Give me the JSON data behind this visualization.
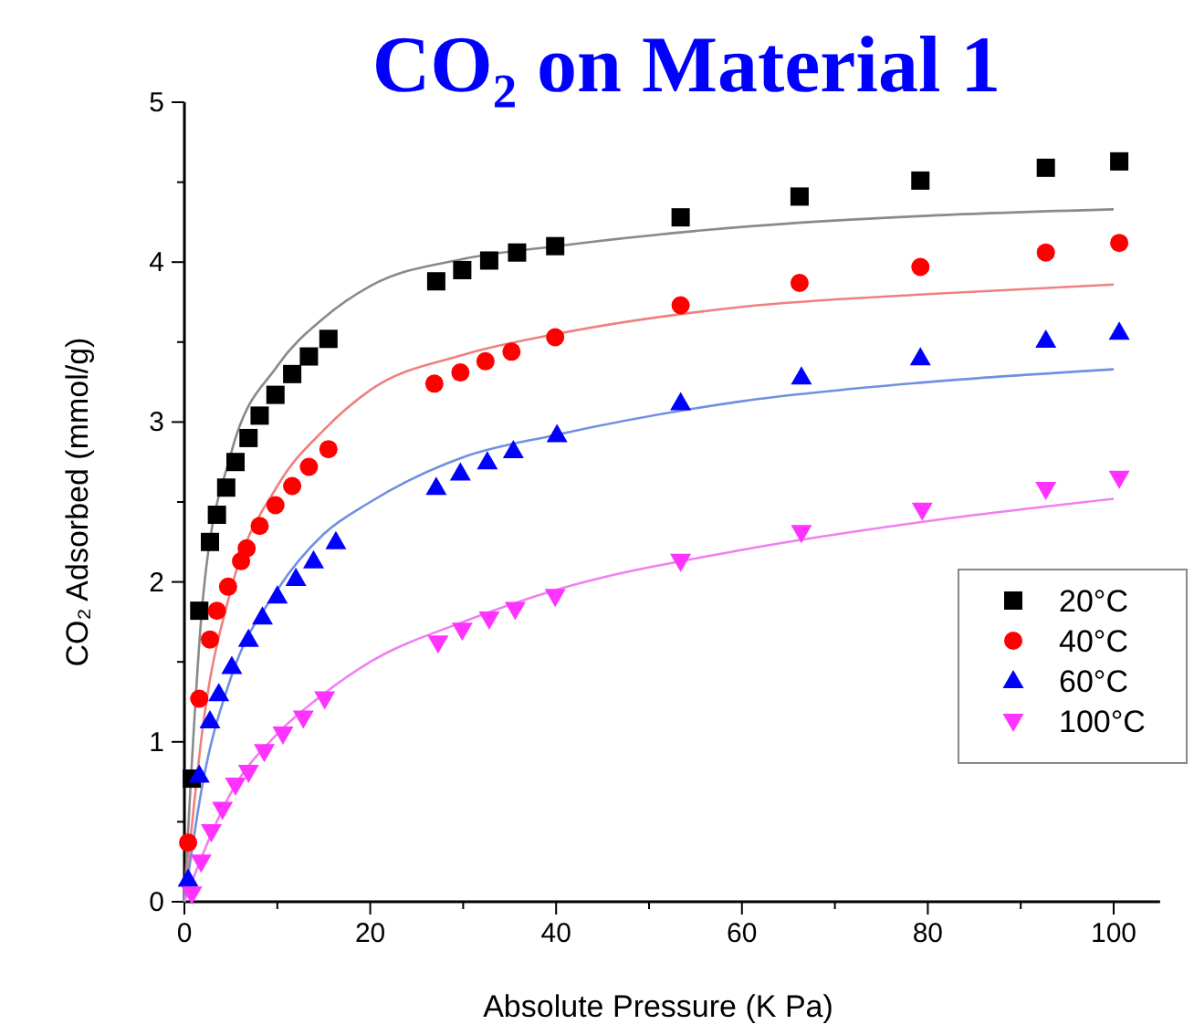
{
  "chart_data": {
    "type": "scatter",
    "title": "CO₂ on Material 1",
    "xlabel": "Absolute Pressure (K Pa)",
    "ylabel": "CO₂ Adsorbed (mmol/g)",
    "xlim": [
      0,
      105
    ],
    "ylim": [
      0,
      5
    ],
    "xticks": [
      0,
      {
        "value": 10,
        "label": null
      },
      20,
      {
        "value": 30,
        "label": null
      },
      40,
      {
        "value": 50,
        "label": null
      },
      60,
      {
        "value": 70,
        "label": null
      },
      80,
      {
        "value": 90,
        "label": null
      },
      100
    ],
    "yticks": [
      0,
      {
        "value": 0.5,
        "label": null
      },
      1,
      {
        "value": 1.5,
        "label": null
      },
      2,
      {
        "value": 2.5,
        "label": null
      },
      3,
      {
        "value": 3.5,
        "label": null
      },
      4,
      {
        "value": 4.5,
        "label": null
      },
      5
    ],
    "grid": false,
    "legend": "bottom right",
    "series": [
      {
        "type": "line",
        "color": "#8a8a8a",
        "x": [
          0,
          2,
          5,
          10,
          15,
          20,
          30,
          40,
          60,
          80,
          100
        ],
        "values": [
          0,
          1.9,
          2.8,
          3.35,
          3.65,
          3.85,
          4.02,
          4.1,
          4.22,
          4.29,
          4.33
        ]
      },
      {
        "type": "line",
        "color": "#f08080",
        "x": [
          0,
          2,
          5,
          10,
          15,
          20,
          30,
          40,
          60,
          80,
          100
        ],
        "values": [
          0,
          1.1,
          1.95,
          2.6,
          2.95,
          3.2,
          3.42,
          3.55,
          3.72,
          3.8,
          3.86
        ]
      },
      {
        "type": "line",
        "color": "#7090e0",
        "x": [
          0,
          2,
          5,
          10,
          15,
          20,
          30,
          40,
          60,
          80,
          100
        ],
        "values": [
          0,
          0.75,
          1.4,
          1.95,
          2.3,
          2.5,
          2.78,
          2.92,
          3.13,
          3.25,
          3.33
        ]
      },
      {
        "type": "line",
        "color": "#f080f0",
        "x": [
          0,
          2,
          5,
          10,
          15,
          20,
          30,
          40,
          60,
          80,
          100
        ],
        "values": [
          0,
          0.3,
          0.68,
          1.05,
          1.3,
          1.5,
          1.75,
          1.95,
          2.2,
          2.38,
          2.52
        ]
      },
      {
        "name": "20°C",
        "marker": "square",
        "color": "#000000",
        "x": [
          0.8,
          1.6,
          2.75,
          3.5,
          4.5,
          5.5,
          6.9,
          8.1,
          9.8,
          11.6,
          13.4,
          15.5,
          27.1,
          29.9,
          32.8,
          35.8,
          39.9,
          53.4,
          66.2,
          79.2,
          92.7,
          100.6
        ],
        "values": [
          0.77,
          1.82,
          2.25,
          2.42,
          2.59,
          2.75,
          2.9,
          3.04,
          3.17,
          3.3,
          3.41,
          3.52,
          3.88,
          3.95,
          4.01,
          4.06,
          4.1,
          4.28,
          4.41,
          4.51,
          4.59,
          4.63
        ]
      },
      {
        "name": "40°C",
        "marker": "circle",
        "color": "#ff0000",
        "x": [
          0.4,
          1.6,
          2.75,
          3.5,
          4.7,
          6.1,
          6.7,
          8.1,
          9.8,
          11.6,
          13.4,
          15.5,
          26.9,
          29.7,
          32.4,
          35.2,
          39.9,
          53.4,
          66.2,
          79.2,
          92.7,
          100.6
        ],
        "values": [
          0.37,
          1.27,
          1.64,
          1.82,
          1.97,
          2.13,
          2.21,
          2.35,
          2.48,
          2.6,
          2.72,
          2.83,
          3.24,
          3.31,
          3.38,
          3.44,
          3.53,
          3.73,
          3.87,
          3.97,
          4.06,
          4.12
        ]
      },
      {
        "name": "60°C",
        "marker": "triangle",
        "color": "#0000ff",
        "x": [
          0.4,
          1.6,
          2.75,
          3.7,
          5.1,
          6.9,
          8.4,
          10,
          12,
          13.9,
          16.3,
          27.1,
          29.7,
          32.6,
          35.4,
          40.1,
          53.4,
          66.4,
          79.2,
          92.7,
          100.6
        ],
        "values": [
          0.14,
          0.79,
          1.13,
          1.3,
          1.47,
          1.64,
          1.78,
          1.91,
          2.02,
          2.13,
          2.25,
          2.59,
          2.68,
          2.75,
          2.82,
          2.92,
          3.12,
          3.28,
          3.4,
          3.51,
          3.56
        ]
      },
      {
        "name": "100°C",
        "marker": "triangle-down",
        "color": "#ff33ff",
        "x": [
          0.8,
          1.8,
          2.9,
          4.1,
          5.5,
          6.9,
          8.6,
          10.6,
          12.8,
          15.1,
          27.3,
          29.9,
          32.8,
          35.6,
          39.9,
          53.4,
          66.4,
          79.4,
          92.7,
          100.6
        ],
        "values": [
          0.05,
          0.25,
          0.44,
          0.58,
          0.73,
          0.81,
          0.94,
          1.05,
          1.15,
          1.27,
          1.62,
          1.7,
          1.77,
          1.83,
          1.91,
          2.13,
          2.31,
          2.45,
          2.58,
          2.65
        ]
      }
    ]
  }
}
